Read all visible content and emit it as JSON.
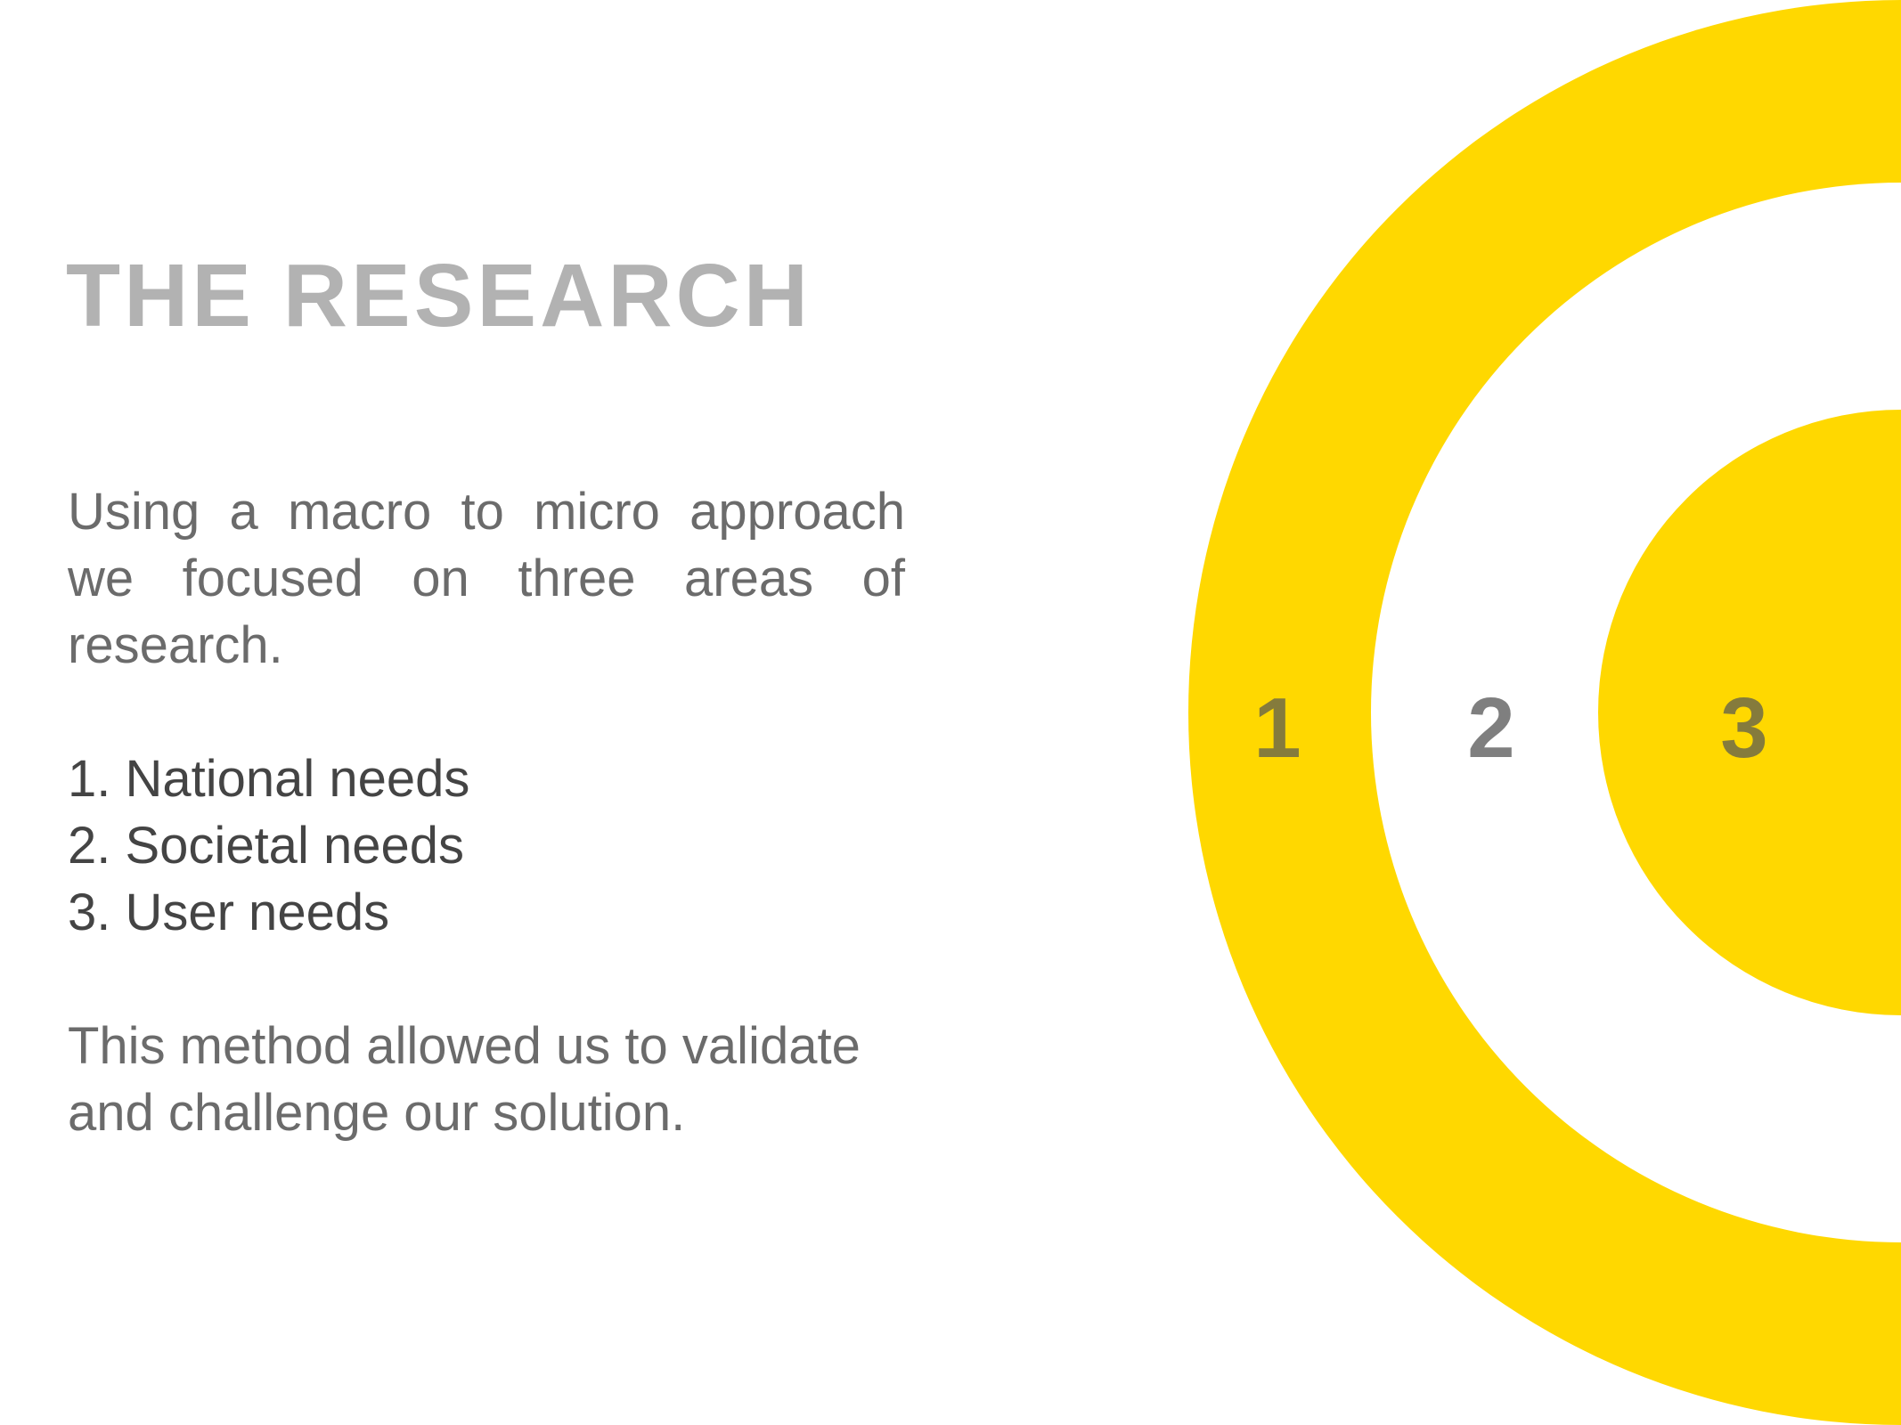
{
  "title": "THE RESEARCH",
  "intro": "Using a macro to micro approach we focused on three areas of research.",
  "areas": [
    "1. National needs",
    "2. Societal needs",
    "3. User needs"
  ],
  "outro": "This method allowed us to validate and challenge our solution.",
  "target": {
    "labels": [
      "1",
      "2",
      "3"
    ]
  },
  "colors": {
    "accent": "#ffd800",
    "title": "#b2b2b2",
    "body": "#6b6b6b",
    "list": "#444444",
    "label_on_yellow": "#857b3c",
    "label_on_white": "#7f7f7f"
  }
}
